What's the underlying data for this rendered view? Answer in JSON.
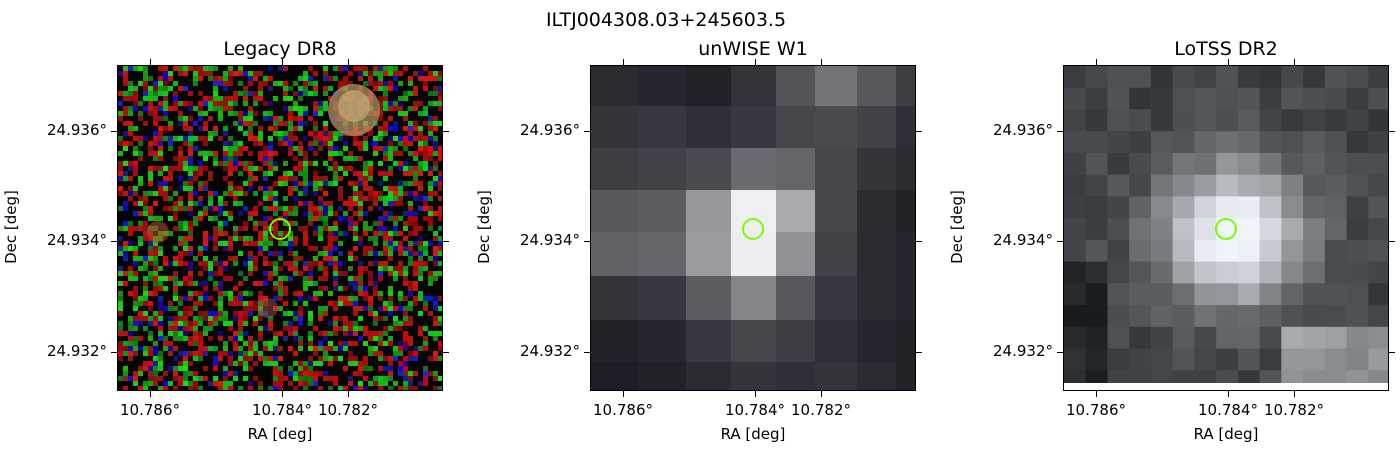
{
  "figure": {
    "title": "ILTJ004308.03+245603.5",
    "panels": [
      {
        "title": "Legacy DR8",
        "xlabel": "RA [deg]",
        "ylabel": "Dec [deg]",
        "style": "rgb-noise"
      },
      {
        "title": "unWISE W1",
        "xlabel": "RA [deg]",
        "ylabel": "Dec [deg]",
        "style": "gray-blocks"
      },
      {
        "title": "LoTSS DR2",
        "xlabel": "RA [deg]",
        "ylabel": "Dec [deg]",
        "style": "gray-blocks-fine"
      }
    ],
    "xticks": [
      "10.786°",
      "10.784°",
      "10.782°"
    ],
    "yticks": [
      "24.936°",
      "24.934°",
      "24.932°"
    ],
    "marker_color": "#7CFC00"
  }
}
